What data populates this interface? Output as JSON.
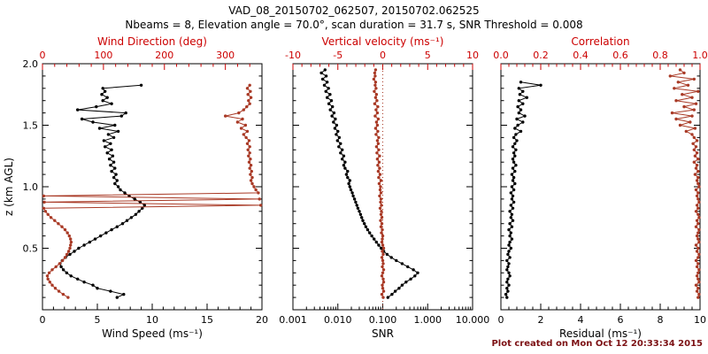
{
  "title": "VAD_08_20150702_062507, 20150702.062525",
  "subtitle": "Nbeams = 8, Elevation angle = 70.0°, scan duration = 31.7 s, SNR Threshold = 0.008",
  "footer": "Plot created on Mon Oct 12 20:33:34 2015",
  "colors": {
    "black": "#000000",
    "axis_red": "#cc0000",
    "data_red": "#a93a26",
    "footer_maroon": "#7c1114"
  },
  "chart_data": [
    {
      "type": "scatter",
      "name": "wind-panel",
      "ylabel": "z (km AGL)",
      "ylim": [
        0,
        2.0
      ],
      "yticks": [
        0.5,
        1.0,
        1.5,
        2.0
      ],
      "ytick_labels": [
        "0.5",
        "1.0",
        "1.5",
        "2.0"
      ],
      "bottom_axis": {
        "label": "Wind Speed (ms⁻¹)",
        "color": "black",
        "lim": [
          0,
          20
        ],
        "ticks": [
          0,
          5,
          10,
          15,
          20
        ],
        "tick_labels": [
          "0",
          "5",
          "10",
          "15",
          "20"
        ]
      },
      "top_axis": {
        "label": "Wind Direction (deg)",
        "color": "red",
        "lim": [
          0,
          360
        ],
        "ticks": [
          0,
          100,
          200,
          300
        ],
        "tick_labels": [
          "0",
          "100",
          "200",
          "300"
        ]
      },
      "series": [
        {
          "name": "wind_speed",
          "axis": "bottom",
          "color": "black",
          "z0": 0.1,
          "dz": 0.025,
          "values": [
            6.8,
            7.4,
            6.2,
            5.0,
            4.6,
            3.8,
            3.2,
            2.6,
            2.2,
            1.9,
            1.7,
            1.6,
            1.8,
            2.1,
            2.5,
            2.9,
            3.3,
            3.8,
            4.3,
            4.8,
            5.3,
            5.8,
            6.3,
            6.8,
            7.3,
            7.7,
            8.1,
            8.5,
            8.8,
            9.1,
            9.3,
            8.9,
            8.4,
            7.9,
            7.5,
            7.1,
            6.9,
            6.6,
            6.8,
            6.5,
            6.7,
            6.3,
            6.6,
            6.2,
            6.5,
            6.1,
            6.4,
            5.9,
            6.3,
            5.7,
            6.2,
            5.6,
            6.5,
            6.0,
            6.9,
            5.2,
            6.6,
            4.6,
            3.6,
            7.2,
            7.6,
            3.2,
            4.9,
            6.3,
            5.5,
            5.9,
            5.4,
            5.7,
            5.5,
            9.0
          ]
        },
        {
          "name": "wind_direction",
          "axis": "top",
          "color": "red",
          "z0": 0.1,
          "dz": 0.025,
          "values": [
            42,
            34,
            27,
            21,
            16,
            12,
            9,
            8,
            11,
            16,
            22,
            28,
            33,
            37,
            40,
            43,
            45,
            46,
            47,
            46,
            44,
            41,
            37,
            32,
            26,
            20,
            14,
            9,
            5,
            2,
            358,
            3,
            356,
            2,
            354,
            350,
            347,
            344,
            342,
            344,
            341,
            343,
            340,
            342,
            339,
            341,
            338,
            340,
            337,
            340,
            336,
            339,
            334,
            330,
            336,
            326,
            333,
            320,
            328,
            300,
            322,
            330,
            335,
            340,
            338,
            342,
            337,
            341,
            336,
            340
          ]
        }
      ]
    },
    {
      "type": "scatter",
      "name": "snr-panel",
      "ylabel": "",
      "ylim": [
        0,
        2.0
      ],
      "yticks": [
        0.5,
        1.0,
        1.5,
        2.0
      ],
      "bottom_axis": {
        "label": "SNR",
        "color": "black",
        "scale": "log",
        "lim": [
          0.001,
          10
        ],
        "ticks": [
          0.001,
          0.01,
          0.1,
          1,
          10
        ],
        "tick_labels": [
          "0.001",
          "0.010",
          "0.100",
          "1.000",
          "10.000"
        ]
      },
      "top_axis": {
        "label": "Vertical velocity (ms⁻¹)",
        "color": "red",
        "lim": [
          -10,
          10
        ],
        "ticks": [
          -10,
          -5,
          0,
          5,
          10
        ],
        "tick_labels": [
          "-10",
          "-5",
          "0",
          "5",
          "10"
        ]
      },
      "refline": {
        "axis": "top",
        "value": 0,
        "style": "dotted",
        "color": "red"
      },
      "series": [
        {
          "name": "snr",
          "axis": "bottom",
          "color": "black",
          "z0": 0.1,
          "dz": 0.025,
          "values": [
            0.13,
            0.16,
            0.19,
            0.23,
            0.27,
            0.33,
            0.42,
            0.52,
            0.6,
            0.48,
            0.36,
            0.27,
            0.2,
            0.155,
            0.125,
            0.105,
            0.092,
            0.081,
            0.072,
            0.064,
            0.057,
            0.051,
            0.046,
            0.042,
            0.039,
            0.036,
            0.034,
            0.032,
            0.03,
            0.028,
            0.0265,
            0.025,
            0.0235,
            0.022,
            0.021,
            0.0195,
            0.0185,
            0.0175,
            0.0185,
            0.0165,
            0.0155,
            0.0165,
            0.0145,
            0.0135,
            0.0145,
            0.0125,
            0.0135,
            0.0115,
            0.0125,
            0.0105,
            0.0115,
            0.0098,
            0.0108,
            0.0092,
            0.01,
            0.0086,
            0.0094,
            0.008,
            0.0088,
            0.0074,
            0.0082,
            0.0068,
            0.0076,
            0.0063,
            0.0072,
            0.0058,
            0.0067,
            0.0054,
            0.0062,
            0.005,
            0.0058,
            0.0046,
            0.0055,
            0.0043,
            0.0052
          ]
        },
        {
          "name": "vertical_velocity",
          "axis": "top",
          "color": "red",
          "z0": 0.1,
          "dz": 0.025,
          "values": [
            0.05,
            -0.1,
            0.1,
            0.0,
            -0.05,
            0.1,
            0.05,
            -0.1,
            0.0,
            0.1,
            -0.05,
            0.05,
            0.0,
            -0.1,
            0.05,
            -0.05,
            0.1,
            0.0,
            -0.1,
            -0.05,
            0.0,
            -0.15,
            -0.05,
            -0.2,
            -0.1,
            -0.25,
            -0.1,
            -0.2,
            -0.15,
            -0.3,
            -0.15,
            -0.25,
            -0.2,
            -0.35,
            -0.2,
            -0.3,
            -0.25,
            -0.4,
            -0.2,
            -0.45,
            -0.3,
            -0.5,
            -0.35,
            -0.55,
            -0.4,
            -0.6,
            -0.35,
            -0.65,
            -0.45,
            -0.7,
            -0.5,
            -0.6,
            -0.45,
            -0.75,
            -0.55,
            -0.8,
            -0.6,
            -0.7,
            -0.5,
            -0.85,
            -0.6,
            -0.75,
            -0.55,
            -0.9,
            -0.65,
            -0.8,
            -0.7,
            -0.95,
            -0.75,
            -0.85,
            -0.8,
            -1.0,
            -0.85,
            -0.9,
            -0.8
          ]
        }
      ]
    },
    {
      "type": "scatter",
      "name": "residual-panel",
      "ylabel": "",
      "ylim": [
        0,
        2.0
      ],
      "yticks": [
        0.5,
        1.0,
        1.5,
        2.0
      ],
      "bottom_axis": {
        "label": "Residual (ms⁻¹)",
        "color": "black",
        "lim": [
          0,
          10
        ],
        "ticks": [
          0,
          2,
          4,
          6,
          8,
          10
        ],
        "tick_labels": [
          "0",
          "2",
          "4",
          "6",
          "8",
          "10"
        ]
      },
      "top_axis": {
        "label": "Correlation",
        "color": "red",
        "lim": [
          0,
          1
        ],
        "ticks": [
          0,
          0.2,
          0.4,
          0.6,
          0.8,
          1
        ],
        "tick_labels": [
          "0.0",
          "0.2",
          "0.4",
          "0.6",
          "0.8",
          "1.0"
        ]
      },
      "series": [
        {
          "name": "residual",
          "axis": "bottom",
          "color": "black",
          "z0": 0.1,
          "dz": 0.025,
          "values": [
            0.3,
            0.25,
            0.35,
            0.3,
            0.4,
            0.3,
            0.35,
            0.45,
            0.4,
            0.3,
            0.35,
            0.4,
            0.3,
            0.45,
            0.35,
            0.4,
            0.5,
            0.4,
            0.45,
            0.55,
            0.45,
            0.5,
            0.4,
            0.55,
            0.45,
            0.6,
            0.5,
            0.55,
            0.45,
            0.6,
            0.5,
            0.65,
            0.55,
            0.6,
            0.5,
            0.65,
            0.55,
            0.7,
            0.6,
            0.65,
            0.55,
            0.7,
            0.6,
            0.75,
            0.65,
            0.6,
            0.7,
            0.65,
            0.75,
            0.6,
            0.7,
            0.8,
            0.65,
            0.75,
            1.0,
            0.7,
            0.85,
            1.1,
            0.8,
            1.2,
            0.9,
            1.0,
            0.85,
            1.1,
            0.9,
            1.3,
            0.95,
            1.1,
            0.9,
            2.0,
            1.0
          ]
        },
        {
          "name": "correlation",
          "axis": "top",
          "color": "red",
          "z0": 0.1,
          "dz": 0.025,
          "values": [
            0.99,
            0.995,
            0.985,
            0.99,
            0.98,
            0.995,
            0.99,
            0.985,
            0.99,
            0.995,
            0.985,
            0.99,
            0.98,
            0.99,
            0.995,
            0.985,
            0.99,
            0.98,
            0.995,
            0.99,
            0.985,
            0.99,
            0.995,
            0.98,
            0.99,
            0.985,
            0.995,
            0.99,
            0.98,
            0.99,
            0.985,
            0.995,
            0.99,
            0.985,
            0.99,
            0.98,
            0.995,
            0.99,
            0.985,
            0.99,
            0.975,
            0.99,
            0.98,
            0.985,
            0.97,
            0.99,
            0.975,
            0.985,
            0.97,
            0.98,
            0.965,
            0.985,
            0.97,
            0.96,
            0.93,
            0.975,
            0.9,
            0.95,
            0.88,
            0.96,
            0.86,
            0.97,
            0.92,
            0.98,
            0.88,
            0.96,
            0.91,
            0.99,
            0.87,
            0.94,
            0.89,
            0.97,
            0.85,
            0.92,
            0.9
          ]
        }
      ]
    }
  ]
}
